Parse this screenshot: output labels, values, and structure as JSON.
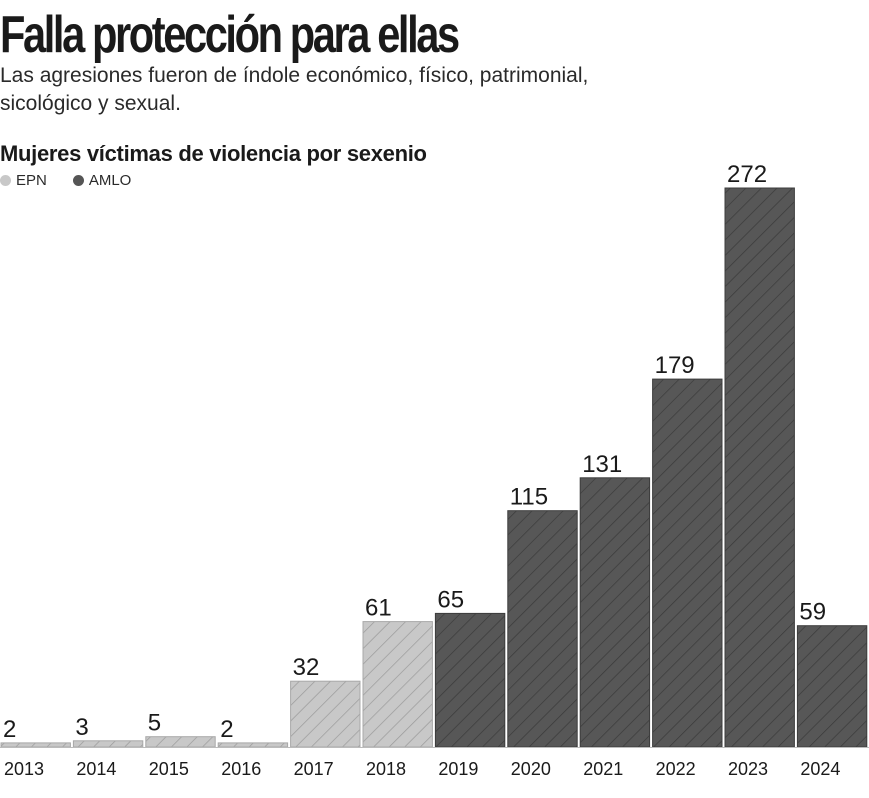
{
  "header": {
    "title": "Falla protección para ellas",
    "subtitle": "Las agresiones fueron de índole económico, físico, patrimonial, sicológico y sexual."
  },
  "chart_data": {
    "type": "bar",
    "title": "Mujeres víctimas de violencia por sexenio",
    "categories": [
      "2013",
      "2014",
      "2015",
      "2016",
      "2017",
      "2018",
      "2019",
      "2020",
      "2021",
      "2022",
      "2023",
      "2024"
    ],
    "values": [
      2,
      3,
      5,
      2,
      32,
      61,
      65,
      115,
      131,
      179,
      272,
      59
    ],
    "groups": [
      "EPN",
      "EPN",
      "EPN",
      "EPN",
      "EPN",
      "EPN",
      "AMLO",
      "AMLO",
      "AMLO",
      "AMLO",
      "AMLO",
      "AMLO"
    ],
    "legend": [
      {
        "name": "EPN",
        "color": "#c8c8c8"
      },
      {
        "name": "AMLO",
        "color": "#555555"
      }
    ],
    "xlabel": "",
    "ylabel": "",
    "ylim": [
      0,
      272
    ],
    "grid": false,
    "legend_position": "top-left"
  }
}
